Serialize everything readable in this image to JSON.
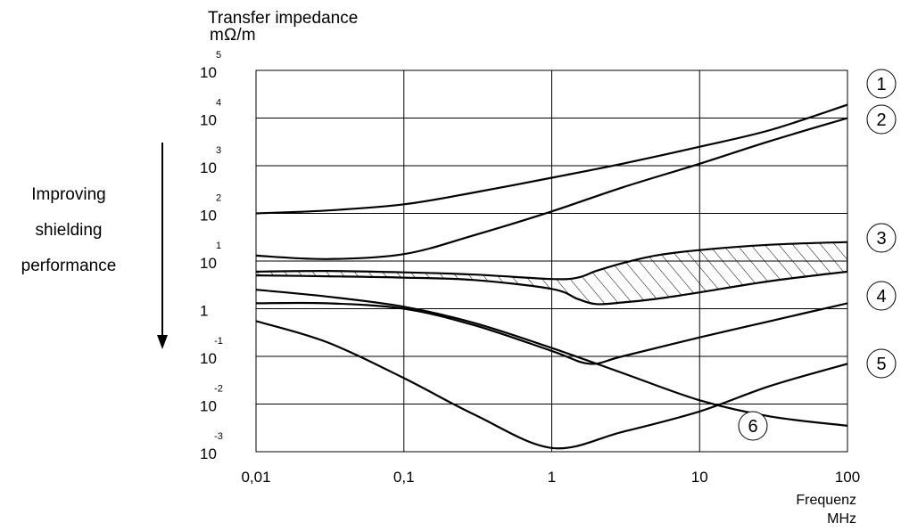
{
  "chart_data": {
    "type": "line",
    "title": "Transfer impedance",
    "ylabel_unit": "mΩ/m",
    "xlabel": "Frequenz",
    "xunit": "MHz",
    "x_scale": "log",
    "y_scale": "log",
    "xlim": [
      0.01,
      100
    ],
    "ylim": [
      0.001,
      100000
    ],
    "grid": true,
    "x_ticks": [
      {
        "value": 0.01,
        "label": "0,01"
      },
      {
        "value": 0.1,
        "label": "0,1"
      },
      {
        "value": 1,
        "label": "1"
      },
      {
        "value": 10,
        "label": "10"
      },
      {
        "value": 100,
        "label": "100"
      }
    ],
    "y_ticks": [
      {
        "value": 100000,
        "base": "10",
        "exp": "5"
      },
      {
        "value": 10000,
        "base": "10",
        "exp": "4"
      },
      {
        "value": 1000,
        "base": "10",
        "exp": "3"
      },
      {
        "value": 100,
        "base": "10",
        "exp": "2"
      },
      {
        "value": 10,
        "base": "10",
        "exp": "1"
      },
      {
        "value": 1,
        "base": "1",
        "exp": ""
      },
      {
        "value": 0.1,
        "base": "10",
        "exp": "-1"
      },
      {
        "value": 0.01,
        "base": "10",
        "exp": "-2"
      },
      {
        "value": 0.001,
        "base": "10",
        "exp": "-3"
      }
    ],
    "annotation": {
      "lines": [
        "Improving",
        "shielding",
        "performance"
      ]
    },
    "series": [
      {
        "name": "1",
        "x": [
          0.01,
          0.03,
          0.1,
          0.3,
          1,
          3,
          10,
          30,
          100
        ],
        "y": [
          100,
          115,
          155,
          275,
          560,
          1100,
          2500,
          5600,
          19000
        ]
      },
      {
        "name": "2",
        "x": [
          0.01,
          0.03,
          0.1,
          0.3,
          1,
          3,
          10,
          30,
          100
        ],
        "y": [
          13,
          11,
          14,
          35,
          110,
          350,
          1100,
          3300,
          10000
        ]
      },
      {
        "name": "3 (upper)",
        "x": [
          0.01,
          0.03,
          0.1,
          0.3,
          1,
          1.5,
          2,
          3,
          5,
          10,
          30,
          100
        ],
        "y": [
          6,
          6.2,
          5.8,
          5.2,
          4.2,
          4.5,
          6.2,
          9,
          13,
          17,
          22,
          25
        ]
      },
      {
        "name": "3 (lower)",
        "x": [
          0.01,
          0.03,
          0.1,
          0.3,
          1,
          1.5,
          2,
          3,
          5,
          10,
          30,
          100
        ],
        "y": [
          5,
          4.8,
          4.5,
          4,
          2.6,
          1.6,
          1.25,
          1.35,
          1.6,
          2.2,
          3.8,
          6
        ]
      },
      {
        "name": "4",
        "x": [
          0.01,
          0.03,
          0.1,
          0.3,
          1,
          1.8,
          3,
          10,
          30,
          100
        ],
        "y": [
          1.3,
          1.3,
          1.0,
          0.45,
          0.13,
          0.07,
          0.1,
          0.25,
          0.55,
          1.3
        ]
      },
      {
        "name": "5",
        "x": [
          0.01,
          0.03,
          0.1,
          0.3,
          1,
          3,
          10,
          30,
          100
        ],
        "y": [
          2.5,
          1.8,
          1.1,
          0.5,
          0.15,
          0.045,
          0.012,
          0.0055,
          0.0035
        ]
      },
      {
        "name": "6",
        "x": [
          0.01,
          0.03,
          0.1,
          0.3,
          1,
          3,
          10,
          30,
          100
        ],
        "y": [
          0.55,
          0.2,
          0.035,
          0.006,
          0.0012,
          0.0026,
          0.007,
          0.024,
          0.07
        ]
      }
    ],
    "curve_labels": [
      "1",
      "2",
      "3",
      "4",
      "5",
      "6"
    ]
  }
}
